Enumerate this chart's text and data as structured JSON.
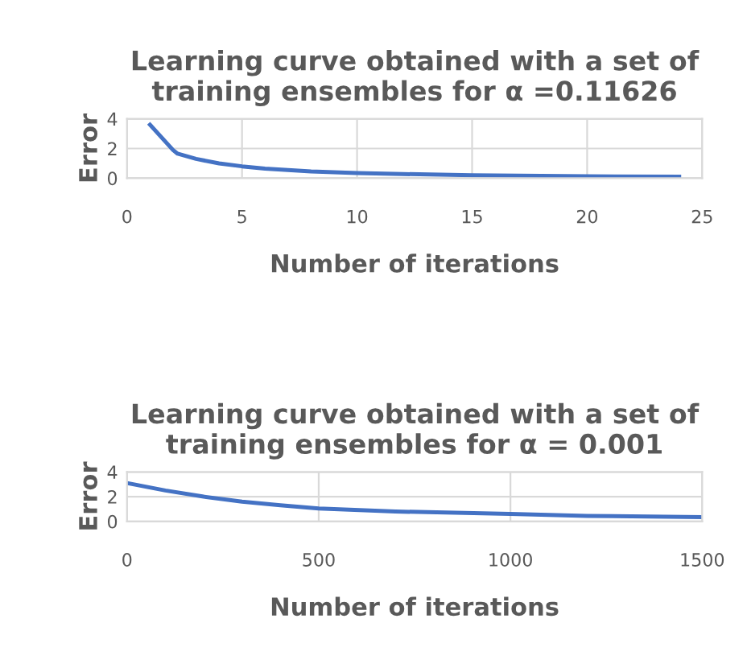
{
  "chart_data": [
    {
      "type": "line",
      "title": "Learning curve obtained with a set of training ensembles for α =0.11626",
      "xlabel": "Number of iterations",
      "ylabel": "Error",
      "series": [
        {
          "color": "#4472c4",
          "x": [
            1,
            2,
            2.2,
            3,
            4,
            5,
            6,
            7,
            8,
            10,
            12,
            15,
            20,
            24
          ],
          "values": [
            3.6,
            1.9,
            1.65,
            1.3,
            1.0,
            0.8,
            0.65,
            0.55,
            0.45,
            0.35,
            0.28,
            0.2,
            0.13,
            0.1
          ]
        }
      ],
      "xlim": [
        0,
        25
      ],
      "xticks": [
        0,
        5,
        10,
        15,
        20,
        25
      ],
      "ylim": [
        0,
        4
      ],
      "yticks": [
        0,
        2,
        4
      ],
      "grid": true,
      "legend": false,
      "marker": "none",
      "line_style": "solid"
    },
    {
      "type": "line",
      "title": "Learning curve obtained with a set of training ensembles for α = 0.001",
      "xlabel": "Number of iterations",
      "ylabel": "Error",
      "series": [
        {
          "color": "#4472c4",
          "x": [
            0,
            100,
            200,
            300,
            400,
            500,
            700,
            1000,
            1200,
            1500
          ],
          "values": [
            3.1,
            2.5,
            2.0,
            1.6,
            1.3,
            1.05,
            0.8,
            0.6,
            0.45,
            0.35
          ]
        }
      ],
      "xlim": [
        0,
        1500
      ],
      "xticks": [
        0,
        500,
        1000,
        1500
      ],
      "ylim": [
        0,
        4
      ],
      "yticks": [
        0,
        2,
        4
      ],
      "grid": true,
      "legend": false,
      "marker": "none",
      "line_style": "solid"
    }
  ]
}
